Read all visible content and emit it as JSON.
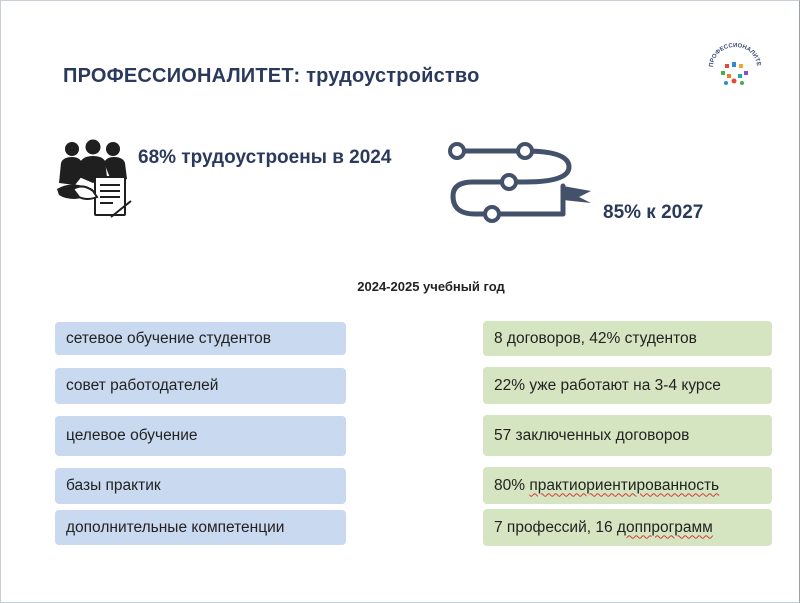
{
  "slide": {
    "title": "ПРОФЕССИОНАЛИТЕТ: трудоустройство",
    "logo_text": "ПРОФЕССИОНАЛИТЕТ"
  },
  "stats": {
    "now": "68% трудоустроены в 2024",
    "goal": "85% к 2027"
  },
  "year_label": "2024-2025 учебный год",
  "rows": [
    {
      "left": "сетевое обучение студентов",
      "right": "8 договоров, 42% студентов"
    },
    {
      "left": "совет работодателей",
      "right": "22% уже работают на 3-4 курсе"
    },
    {
      "left": "целевое обучение",
      "right": "57 заключенных договоров"
    },
    {
      "left": "базы практик",
      "right_prefix": "80% ",
      "right_marked": "практиориентированность"
    },
    {
      "left": "дополнительные компетенции",
      "right_prefix": "7 профессий, 16 ",
      "right_marked": "доппрограмм"
    }
  ],
  "icons": {
    "people": "businesspeople-handshake-icon",
    "roadmap": "roadmap-flag-icon",
    "logo": "professionalitet-logo"
  },
  "colors": {
    "title": "#2b3a5c",
    "left_box": "#c8d9f0",
    "right_box": "#d6e5c1",
    "icon_dark": "#222222",
    "roadmap": "#44516a"
  }
}
